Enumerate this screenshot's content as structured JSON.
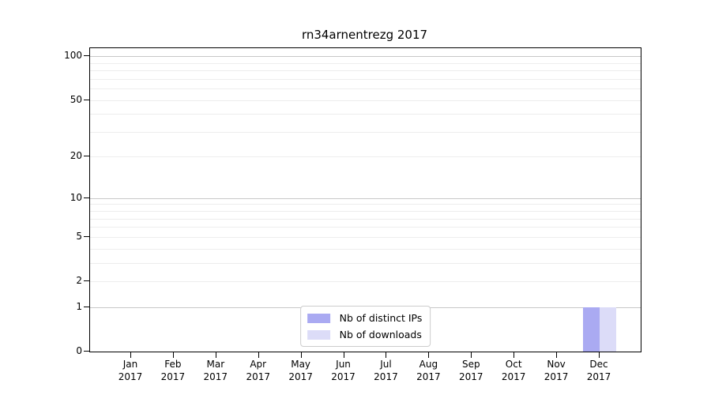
{
  "chart_data": {
    "type": "bar",
    "title": "rn34arnentrezg 2017",
    "categories": [
      "Jan",
      "Feb",
      "Mar",
      "Apr",
      "May",
      "Jun",
      "Jul",
      "Aug",
      "Sep",
      "Oct",
      "Nov",
      "Dec"
    ],
    "x_year_label": "2017",
    "series": [
      {
        "name": "Nb of distinct IPs",
        "color": "#aaaaf2",
        "values": [
          0,
          0,
          0,
          0,
          0,
          0,
          0,
          0,
          0,
          0,
          0,
          1
        ]
      },
      {
        "name": "Nb of downloads",
        "color": "#dcdcf8",
        "values": [
          0,
          0,
          0,
          0,
          0,
          0,
          0,
          0,
          0,
          0,
          0,
          1
        ]
      }
    ],
    "yscale": "log1p",
    "ylim": [
      0,
      113.5
    ],
    "yticks": [
      {
        "value": 0,
        "label": "0"
      },
      {
        "value": 1,
        "label": "1"
      },
      {
        "value": 2,
        "label": "2"
      },
      {
        "value": 5,
        "label": "5"
      },
      {
        "value": 10,
        "label": "10"
      },
      {
        "value": 20,
        "label": "20"
      },
      {
        "value": 50,
        "label": "50"
      },
      {
        "value": 100,
        "label": "100"
      }
    ],
    "grid": true,
    "grid_major_values": [
      1,
      10,
      100
    ],
    "grid_minor_values": [
      2,
      3,
      4,
      5,
      6,
      7,
      8,
      9,
      20,
      30,
      40,
      50,
      60,
      70,
      80,
      90
    ],
    "legend_position": "lower center",
    "colors": {
      "grid_major": "#c8c8c8",
      "grid_minor": "#ededed",
      "axis": "#000000",
      "text": "#000000",
      "background": "#ffffff"
    }
  }
}
